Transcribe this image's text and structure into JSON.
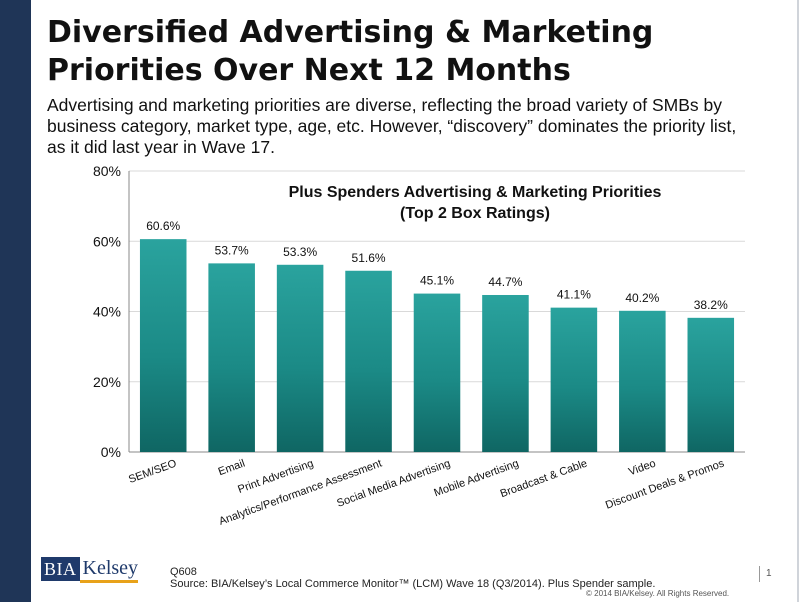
{
  "slide": {
    "title": "Diversified Advertising & Marketing Priorities Over Next 12 Months",
    "subtitle": "Advertising and marketing priorities are diverse, reflecting the broad variety of SMBs by business category, market type, age, etc. However, “discovery” dominates the priority list, as it did last year in Wave 17.",
    "question_code": "Q608",
    "source": "Source:  BIA/Kelsey’s Local Commerce Monitor™ (LCM) Wave 18 (Q3/2014). Plus Spender sample.",
    "copyright": "© 2014 BIA/Kelsey. All Rights Reserved.",
    "page_number": "1",
    "logo": {
      "left": "BIA",
      "right": "Kelsey"
    }
  },
  "chart_data": {
    "type": "bar",
    "title": "Plus Spenders Advertising & Marketing Priorities (Top 2 Box Ratings)",
    "title_lines": [
      "Plus Spenders Advertising & Marketing Priorities",
      "(Top 2 Box Ratings)"
    ],
    "categories": [
      "SEM/SEO",
      "Email",
      "Print Advertising",
      "Analytics/Performance Assessment",
      "Social Media Advertising",
      "Mobile Advertising",
      "Broadcast & Cable",
      "Video",
      "Discount Deals & Promos"
    ],
    "values": [
      60.6,
      53.7,
      53.3,
      51.6,
      45.1,
      44.7,
      41.1,
      40.2,
      38.2
    ],
    "data_labels": [
      "60.6%",
      "53.7%",
      "53.3%",
      "51.6%",
      "45.1%",
      "44.7%",
      "41.1%",
      "40.2%",
      "38.2%"
    ],
    "ylim": [
      0,
      80
    ],
    "yticks": [
      0,
      20,
      40,
      60,
      80
    ],
    "ytick_labels": [
      "0%",
      "20%",
      "40%",
      "60%",
      "80%"
    ],
    "xlabel": "",
    "ylabel": "",
    "grid": true,
    "bar_color": "#1b8a86",
    "bar_color_light": "#2aa39e",
    "bar_color_dark": "#0f6663"
  }
}
